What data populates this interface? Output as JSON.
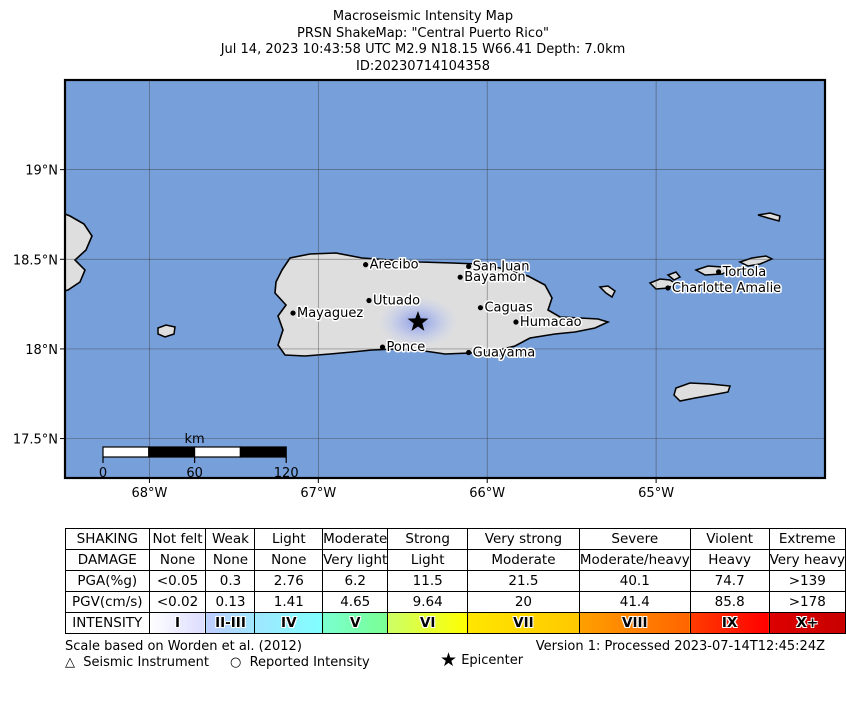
{
  "header": {
    "line1": "Macroseismic Intensity Map",
    "line2": "PRSN ShakeMap: \"Central Puerto Rico\"",
    "line3": "Jul 14, 2023 10:43:58 UTC M2.9 N18.15 W66.41 Depth: 7.0km",
    "line4": "ID:20230714104358"
  },
  "map": {
    "lon_range": [
      -68.5,
      -64.0
    ],
    "lat_range": [
      17.28,
      19.5
    ],
    "gridlines_lon": [
      -68,
      -67,
      -66,
      -65
    ],
    "gridlines_lat": [
      17.5,
      18.0,
      18.5,
      19.0
    ],
    "lat_labels": [
      "17.5°N",
      "18°N",
      "18.5°N",
      "19°N"
    ],
    "lon_labels": [
      "68°W",
      "67°W",
      "66°W",
      "65°W"
    ],
    "water_color": "#779fd9",
    "land_color": "#e0e0e0",
    "epicenter": {
      "lon": -66.41,
      "lat": 18.15
    },
    "cities": [
      {
        "name": "Arecibo",
        "lon": -66.72,
        "lat": 18.47
      },
      {
        "name": "San Juan",
        "lon": -66.11,
        "lat": 18.46
      },
      {
        "name": "Bayamon",
        "lon": -66.16,
        "lat": 18.4
      },
      {
        "name": "Utuado",
        "lon": -66.7,
        "lat": 18.27
      },
      {
        "name": "Mayaguez",
        "lon": -67.15,
        "lat": 18.2
      },
      {
        "name": "Caguas",
        "lon": -66.04,
        "lat": 18.23
      },
      {
        "name": "Humacao",
        "lon": -65.83,
        "lat": 18.15
      },
      {
        "name": "Ponce",
        "lon": -66.62,
        "lat": 18.01
      },
      {
        "name": "Guayama",
        "lon": -66.11,
        "lat": 17.98
      },
      {
        "name": "Tortola",
        "lon": -64.63,
        "lat": 18.43
      },
      {
        "name": "Charlotte Amalie",
        "lon": -64.93,
        "lat": 18.34
      }
    ],
    "scalebar": {
      "title": "km",
      "labels": [
        "0",
        "60",
        "120"
      ]
    }
  },
  "legend": {
    "rows": [
      {
        "label": "SHAKING",
        "values": [
          "Not felt",
          "Weak",
          "Light",
          "Moderate",
          "Strong",
          "Very strong",
          "Severe",
          "Violent",
          "Extreme"
        ]
      },
      {
        "label": "DAMAGE",
        "values": [
          "None",
          "None",
          "None",
          "Very light",
          "Light",
          "Moderate",
          "Moderate/heavy",
          "Heavy",
          "Very heavy"
        ]
      },
      {
        "label": "PGA(%g)",
        "values": [
          "<0.05",
          "0.3",
          "2.76",
          "6.2",
          "11.5",
          "21.5",
          "40.1",
          "74.7",
          ">139"
        ]
      },
      {
        "label": "PGV(cm/s)",
        "values": [
          "<0.02",
          "0.13",
          "1.41",
          "4.65",
          "9.64",
          "20",
          "41.4",
          "85.8",
          ">178"
        ]
      }
    ],
    "intensity_label": "INTENSITY",
    "intensities": [
      "I",
      "II-III",
      "IV",
      "V",
      "VI",
      "VII",
      "VIII",
      "IX",
      "X+"
    ],
    "intensity_colors": [
      [
        "#ffffff",
        "#dcdcff"
      ],
      [
        "#bfccff",
        "#a0e6ff"
      ],
      [
        "#a0e6ff",
        "#80ffff"
      ],
      [
        "#7affd0",
        "#7aff93"
      ],
      [
        "#ccff66",
        "#ffff00"
      ],
      [
        "#ffe600",
        "#ffc800"
      ],
      [
        "#ffa000",
        "#ff6400"
      ],
      [
        "#ff3c00",
        "#ff0000"
      ],
      [
        "#dd0000",
        "#c80000"
      ]
    ]
  },
  "footer": {
    "scale_note": "Scale based on Worden et al. (2012)",
    "version": "Version 1: Processed 2023-07-14T12:45:24Z",
    "instrument": "Seismic Instrument",
    "reported": "Reported Intensity",
    "epicenter": "Epicenter"
  }
}
